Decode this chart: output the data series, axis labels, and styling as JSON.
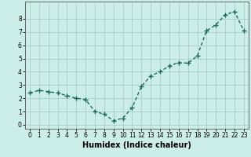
{
  "x": [
    0,
    1,
    2,
    3,
    4,
    5,
    6,
    7,
    8,
    9,
    10,
    11,
    12,
    13,
    14,
    15,
    16,
    17,
    18,
    19,
    20,
    21,
    22,
    23
  ],
  "y": [
    2.4,
    2.6,
    2.5,
    2.4,
    2.2,
    2.0,
    1.9,
    1.0,
    0.8,
    0.3,
    0.5,
    1.3,
    2.9,
    3.7,
    4.0,
    4.45,
    4.7,
    4.65,
    5.2,
    7.1,
    7.55,
    8.3,
    8.55,
    7.1
  ],
  "line_color": "#1e6b5e",
  "marker": "+",
  "marker_size": 4,
  "linewidth": 1.0,
  "background_color": "#cceee8",
  "grid_color": "#aacccc",
  "xlabel": "Humidex (Indice chaleur)",
  "xlabel_fontsize": 7,
  "xlabel_fontweight": "bold",
  "xlim": [
    -0.5,
    23.5
  ],
  "ylim": [
    -0.3,
    9.3
  ],
  "yticks": [
    0,
    1,
    2,
    3,
    4,
    5,
    6,
    7,
    8
  ],
  "xticks": [
    0,
    1,
    2,
    3,
    4,
    5,
    6,
    7,
    8,
    9,
    10,
    11,
    12,
    13,
    14,
    15,
    16,
    17,
    18,
    19,
    20,
    21,
    22,
    23
  ],
  "tick_fontsize": 5.5,
  "spine_color": "#666666"
}
